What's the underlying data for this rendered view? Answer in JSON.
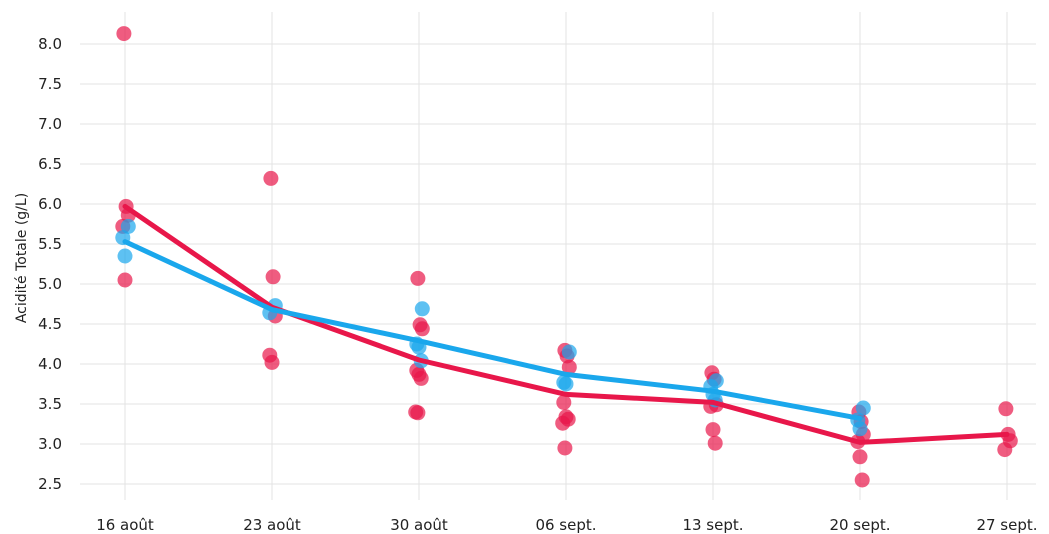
{
  "chart_data": {
    "type": "scatter",
    "title": "",
    "xlabel": "",
    "ylabel": "Acidité Totale (g/L)",
    "ylim": [
      2.45,
      8.3
    ],
    "yticks": [
      2.5,
      3.0,
      3.5,
      4.0,
      4.5,
      5.0,
      5.5,
      6.0,
      6.5,
      7.0,
      7.5,
      8.0
    ],
    "categories": [
      "16 août",
      "23 août",
      "30 août",
      "06 sept.",
      "13 sept.",
      "20 sept.",
      "27 sept."
    ],
    "grid": true,
    "legend": "none",
    "series": [
      {
        "color": "#e8174a",
        "mean_line": [
          5.97,
          4.71,
          4.05,
          3.62,
          3.52,
          3.02,
          3.12
        ],
        "points": [
          [
            0,
            8.13
          ],
          [
            0,
            5.97
          ],
          [
            0,
            5.86
          ],
          [
            0,
            5.72
          ],
          [
            0,
            5.05
          ],
          [
            1,
            6.32
          ],
          [
            1,
            5.09
          ],
          [
            1,
            4.6
          ],
          [
            1,
            4.11
          ],
          [
            1,
            4.02
          ],
          [
            2,
            5.07
          ],
          [
            2,
            4.49
          ],
          [
            2,
            4.44
          ],
          [
            2,
            3.92
          ],
          [
            2,
            3.87
          ],
          [
            2,
            3.82
          ],
          [
            2,
            3.4
          ],
          [
            2,
            3.39
          ],
          [
            3,
            4.17
          ],
          [
            3,
            4.1
          ],
          [
            3,
            3.96
          ],
          [
            3,
            3.52
          ],
          [
            3,
            3.34
          ],
          [
            3,
            3.31
          ],
          [
            3,
            3.26
          ],
          [
            3,
            2.95
          ],
          [
            4,
            3.89
          ],
          [
            4,
            3.81
          ],
          [
            4,
            3.49
          ],
          [
            4,
            3.47
          ],
          [
            4,
            3.18
          ],
          [
            4,
            3.01
          ],
          [
            5,
            3.4
          ],
          [
            5,
            3.28
          ],
          [
            5,
            3.12
          ],
          [
            5,
            3.03
          ],
          [
            5,
            2.84
          ],
          [
            5,
            2.55
          ],
          [
            6,
            3.44
          ],
          [
            6,
            3.12
          ],
          [
            6,
            3.04
          ],
          [
            6,
            2.93
          ]
        ]
      },
      {
        "color": "#1aa7ec",
        "mean_line": [
          5.53,
          4.68,
          4.29,
          3.87,
          3.66,
          3.32
        ],
        "points": [
          [
            0,
            5.72
          ],
          [
            0,
            5.58
          ],
          [
            0,
            5.35
          ],
          [
            1,
            4.73
          ],
          [
            1,
            4.64
          ],
          [
            2,
            4.69
          ],
          [
            2,
            4.25
          ],
          [
            2,
            4.21
          ],
          [
            2,
            4.04
          ],
          [
            3,
            4.15
          ],
          [
            3,
            3.77
          ],
          [
            3,
            3.75
          ],
          [
            4,
            3.79
          ],
          [
            4,
            3.72
          ],
          [
            4,
            3.62
          ],
          [
            4,
            3.55
          ],
          [
            5,
            3.45
          ],
          [
            5,
            3.3
          ],
          [
            5,
            3.19
          ]
        ]
      }
    ]
  }
}
